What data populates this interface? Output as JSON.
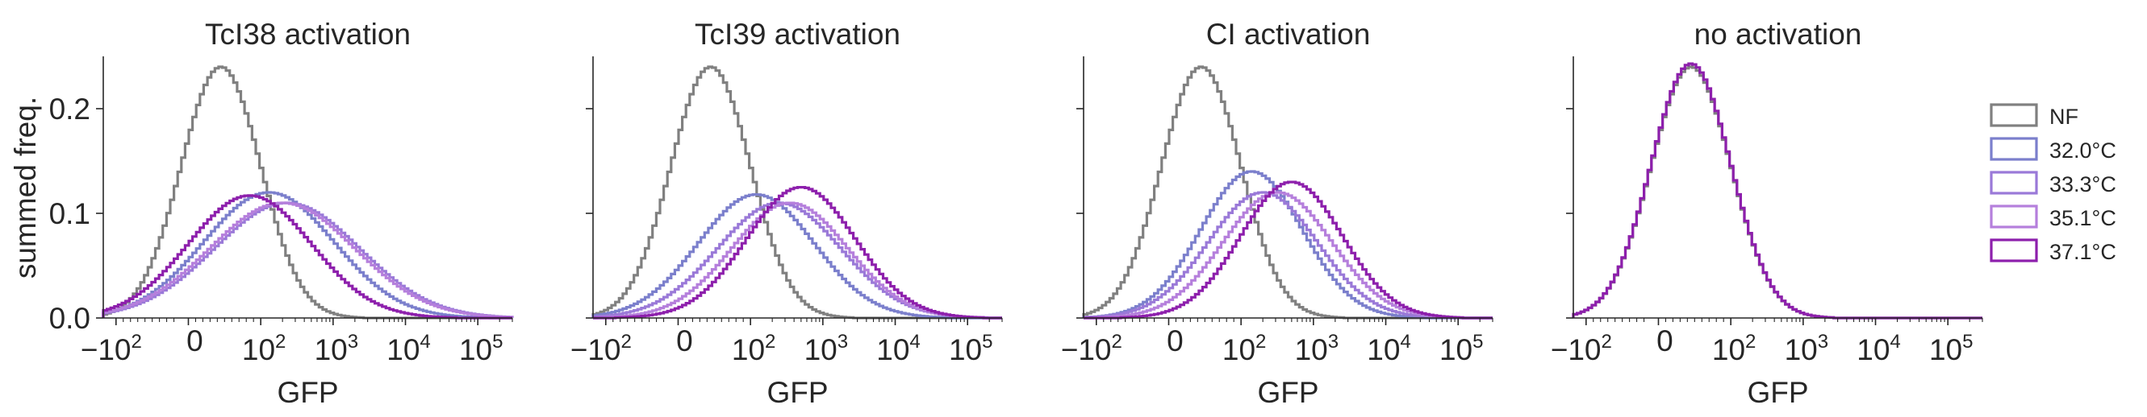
{
  "figure": {
    "ylabel": "summed freq.",
    "xlabel": "GFP",
    "legend_position": "right"
  },
  "legend": [
    {
      "label": "NF",
      "color": "#808080"
    },
    {
      "label": "32.0°C",
      "color": "#7b7fcc"
    },
    {
      "label": "33.3°C",
      "color": "#9a79d8"
    },
    {
      "label": "35.1°C",
      "color": "#b57fdc"
    },
    {
      "label": "37.1°C",
      "color": "#8d1fac"
    }
  ],
  "chart_data": [
    {
      "type": "area",
      "title": "TcI38 activation",
      "xlabel": "GFP",
      "ylabel": "summed freq.",
      "xscale": "symlog",
      "xlim": [
        -150,
        300000
      ],
      "ylim": [
        0,
        0.25
      ],
      "xticks": [
        "−10²",
        "0",
        "10²",
        "10³",
        "10⁴",
        "10⁵"
      ],
      "yticks": [
        "0.0",
        "0.1",
        "0.2"
      ],
      "series": [
        {
          "name": "NF",
          "color": "#808080",
          "peak_x": 45,
          "peak_y": 0.24,
          "width": 0.55
        },
        {
          "name": "32.0°C",
          "color": "#7b7fcc",
          "peak_x": 130,
          "peak_y": 0.12,
          "width": 0.9
        },
        {
          "name": "33.3°C",
          "color": "#9a79d8",
          "peak_x": 230,
          "peak_y": 0.11,
          "width": 1.0
        },
        {
          "name": "35.1°C",
          "color": "#b57fdc",
          "peak_x": 200,
          "peak_y": 0.11,
          "width": 1.0
        },
        {
          "name": "37.1°C",
          "color": "#8d1fac",
          "peak_x": 85,
          "peak_y": 0.117,
          "width": 0.85
        }
      ]
    },
    {
      "type": "area",
      "title": "TcI39 activation",
      "xlabel": "GFP",
      "xscale": "symlog",
      "xlim": [
        -150,
        300000
      ],
      "ylim": [
        0,
        0.25
      ],
      "xticks": [
        "−10²",
        "0",
        "10²",
        "10³",
        "10⁴",
        "10⁵"
      ],
      "series": [
        {
          "name": "NF",
          "color": "#808080",
          "peak_x": 45,
          "peak_y": 0.24,
          "width": 0.55
        },
        {
          "name": "32.0°C",
          "color": "#7b7fcc",
          "peak_x": 120,
          "peak_y": 0.118,
          "width": 0.8
        },
        {
          "name": "33.3°C",
          "color": "#9a79d8",
          "peak_x": 250,
          "peak_y": 0.11,
          "width": 0.85
        },
        {
          "name": "35.1°C",
          "color": "#b57fdc",
          "peak_x": 350,
          "peak_y": 0.11,
          "width": 0.8
        },
        {
          "name": "37.1°C",
          "color": "#8d1fac",
          "peak_x": 500,
          "peak_y": 0.125,
          "width": 0.75
        }
      ]
    },
    {
      "type": "area",
      "title": "CI activation",
      "xlabel": "GFP",
      "xscale": "symlog",
      "xlim": [
        -150,
        300000
      ],
      "ylim": [
        0,
        0.25
      ],
      "xticks": [
        "−10²",
        "0",
        "10²",
        "10³",
        "10⁴",
        "10⁵"
      ],
      "series": [
        {
          "name": "NF",
          "color": "#808080",
          "peak_x": 45,
          "peak_y": 0.24,
          "width": 0.55
        },
        {
          "name": "32.0°C",
          "color": "#7b7fcc",
          "peak_x": 140,
          "peak_y": 0.14,
          "width": 0.7
        },
        {
          "name": "33.3°C",
          "color": "#9a79d8",
          "peak_x": 200,
          "peak_y": 0.12,
          "width": 0.75
        },
        {
          "name": "35.1°C",
          "color": "#b57fdc",
          "peak_x": 320,
          "peak_y": 0.12,
          "width": 0.75
        },
        {
          "name": "37.1°C",
          "color": "#8d1fac",
          "peak_x": 500,
          "peak_y": 0.13,
          "width": 0.7
        }
      ]
    },
    {
      "type": "area",
      "title": "no activation",
      "xlabel": "GFP",
      "xscale": "symlog",
      "xlim": [
        -150,
        300000
      ],
      "ylim": [
        0,
        0.25
      ],
      "xticks": [
        "−10²",
        "0",
        "10²",
        "10³",
        "10⁴",
        "10⁵"
      ],
      "series": [
        {
          "name": "NF",
          "color": "#808080",
          "peak_x": 45,
          "peak_y": 0.24,
          "width": 0.55
        },
        {
          "name": "37.1°C",
          "color": "#8d1fac",
          "peak_x": 45,
          "peak_y": 0.243,
          "width": 0.55
        }
      ]
    }
  ]
}
